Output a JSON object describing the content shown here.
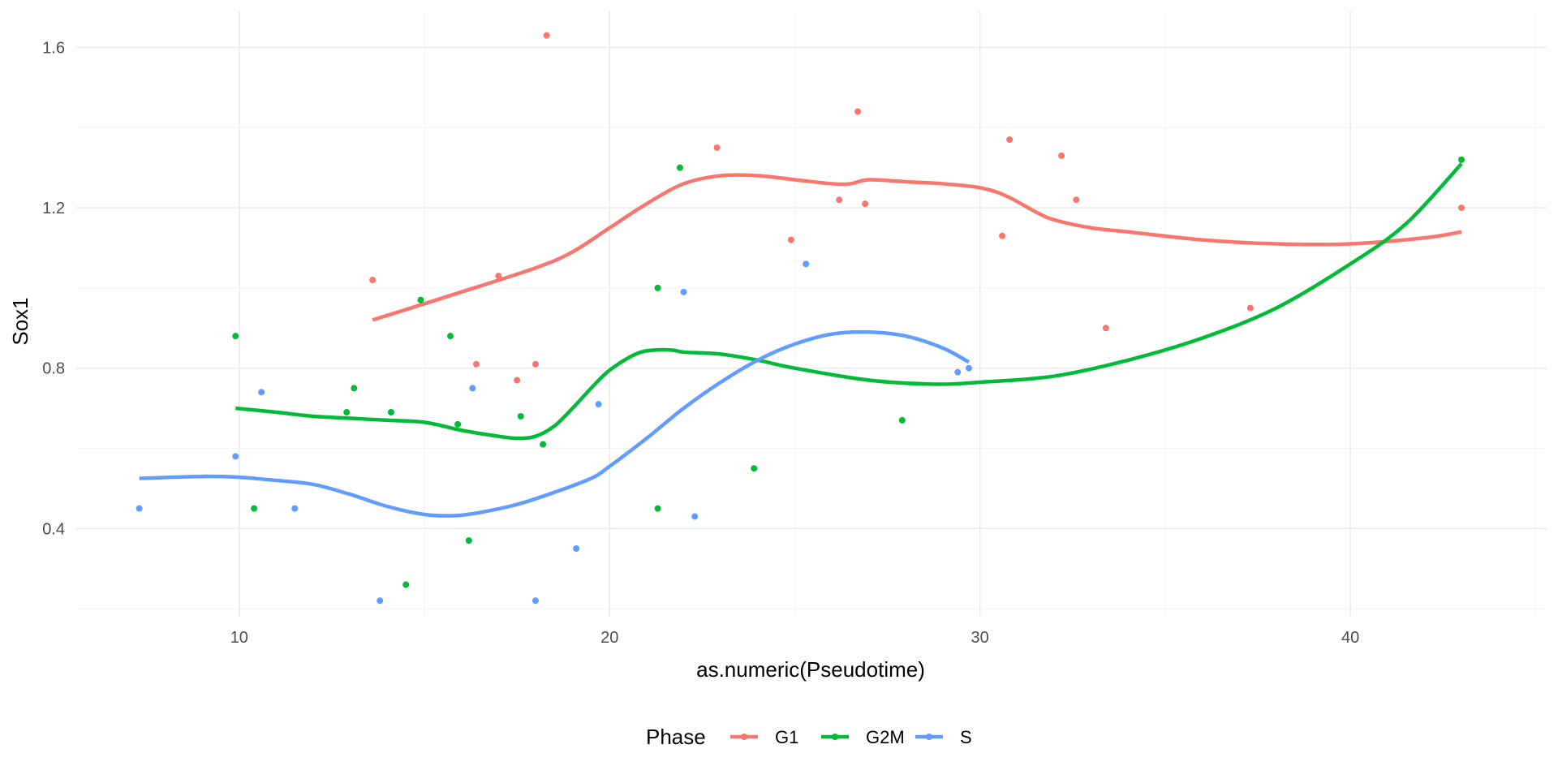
{
  "chart_data": {
    "type": "scatter",
    "title": "",
    "xlabel": "as.numeric(Pseudotime)",
    "ylabel": "Sox1",
    "xlim": [
      5.6,
      45.3
    ],
    "ylim": [
      0.18,
      1.69
    ],
    "x_ticks": [
      10,
      20,
      30,
      40
    ],
    "y_ticks": [
      0.4,
      0.8,
      1.2,
      1.6
    ],
    "grid": true,
    "legend": {
      "title": "Phase",
      "position": "bottom"
    },
    "series": [
      {
        "name": "G1",
        "color": "#F8766D",
        "points": [
          [
            13.6,
            1.02
          ],
          [
            18.3,
            1.63
          ],
          [
            17.0,
            1.03
          ],
          [
            16.4,
            0.81
          ],
          [
            17.5,
            0.77
          ],
          [
            18.0,
            0.81
          ],
          [
            22.9,
            1.35
          ],
          [
            24.9,
            1.12
          ],
          [
            26.2,
            1.22
          ],
          [
            26.7,
            1.44
          ],
          [
            26.9,
            1.21
          ],
          [
            30.6,
            1.13
          ],
          [
            30.8,
            1.37
          ],
          [
            32.2,
            1.33
          ],
          [
            32.6,
            1.22
          ],
          [
            33.4,
            0.9
          ],
          [
            37.3,
            0.95
          ],
          [
            43.0,
            1.2
          ]
        ],
        "smooth": [
          [
            13.6,
            0.92
          ],
          [
            16.0,
            0.99
          ],
          [
            18.0,
            1.05
          ],
          [
            19.0,
            1.09
          ],
          [
            20.0,
            1.15
          ],
          [
            21.0,
            1.21
          ],
          [
            22.0,
            1.26
          ],
          [
            23.0,
            1.28
          ],
          [
            24.0,
            1.28
          ],
          [
            25.0,
            1.27
          ],
          [
            26.0,
            1.26
          ],
          [
            26.5,
            1.26
          ],
          [
            27.0,
            1.27
          ],
          [
            28.0,
            1.265
          ],
          [
            29.0,
            1.26
          ],
          [
            30.0,
            1.25
          ],
          [
            30.7,
            1.23
          ],
          [
            31.5,
            1.19
          ],
          [
            32.0,
            1.17
          ],
          [
            33.0,
            1.15
          ],
          [
            34.0,
            1.14
          ],
          [
            36.0,
            1.12
          ],
          [
            38.0,
            1.11
          ],
          [
            40.0,
            1.11
          ],
          [
            42.0,
            1.125
          ],
          [
            43.0,
            1.14
          ]
        ]
      },
      {
        "name": "G2M",
        "color": "#00BA38",
        "points": [
          [
            9.9,
            0.88
          ],
          [
            10.4,
            0.45
          ],
          [
            12.9,
            0.69
          ],
          [
            13.1,
            0.75
          ],
          [
            14.1,
            0.69
          ],
          [
            14.5,
            0.26
          ],
          [
            14.9,
            0.97
          ],
          [
            15.7,
            0.88
          ],
          [
            15.9,
            0.66
          ],
          [
            16.2,
            0.37
          ],
          [
            17.6,
            0.68
          ],
          [
            18.2,
            0.61
          ],
          [
            21.3,
            1.0
          ],
          [
            21.3,
            0.45
          ],
          [
            21.9,
            1.3
          ],
          [
            23.9,
            0.55
          ],
          [
            27.9,
            0.67
          ],
          [
            43.0,
            1.32
          ]
        ],
        "smooth": [
          [
            9.9,
            0.7
          ],
          [
            11.0,
            0.69
          ],
          [
            12.0,
            0.68
          ],
          [
            13.0,
            0.675
          ],
          [
            14.0,
            0.67
          ],
          [
            15.0,
            0.665
          ],
          [
            16.0,
            0.645
          ],
          [
            17.0,
            0.63
          ],
          [
            17.5,
            0.625
          ],
          [
            18.0,
            0.63
          ],
          [
            18.5,
            0.655
          ],
          [
            19.0,
            0.7
          ],
          [
            19.5,
            0.75
          ],
          [
            20.0,
            0.795
          ],
          [
            20.7,
            0.835
          ],
          [
            21.2,
            0.845
          ],
          [
            21.7,
            0.845
          ],
          [
            22.0,
            0.84
          ],
          [
            23.0,
            0.835
          ],
          [
            24.0,
            0.82
          ],
          [
            25.0,
            0.8
          ],
          [
            27.0,
            0.77
          ],
          [
            28.8,
            0.76
          ],
          [
            30.0,
            0.765
          ],
          [
            32.0,
            0.78
          ],
          [
            34.0,
            0.82
          ],
          [
            36.0,
            0.875
          ],
          [
            38.0,
            0.95
          ],
          [
            40.0,
            1.06
          ],
          [
            41.5,
            1.16
          ],
          [
            43.0,
            1.31
          ]
        ]
      },
      {
        "name": "S",
        "color": "#619CFF",
        "points": [
          [
            7.3,
            0.45
          ],
          [
            9.9,
            0.58
          ],
          [
            10.6,
            0.74
          ],
          [
            11.5,
            0.45
          ],
          [
            13.8,
            0.22
          ],
          [
            16.3,
            0.75
          ],
          [
            18.0,
            0.22
          ],
          [
            19.1,
            0.35
          ],
          [
            19.7,
            0.71
          ],
          [
            22.0,
            0.99
          ],
          [
            22.3,
            0.43
          ],
          [
            25.3,
            1.06
          ],
          [
            29.4,
            0.79
          ],
          [
            29.7,
            0.8
          ]
        ],
        "smooth": [
          [
            7.3,
            0.525
          ],
          [
            9.0,
            0.53
          ],
          [
            10.0,
            0.528
          ],
          [
            11.0,
            0.52
          ],
          [
            12.0,
            0.51
          ],
          [
            13.0,
            0.485
          ],
          [
            14.0,
            0.455
          ],
          [
            15.0,
            0.435
          ],
          [
            15.8,
            0.432
          ],
          [
            16.5,
            0.44
          ],
          [
            17.5,
            0.46
          ],
          [
            18.5,
            0.49
          ],
          [
            19.5,
            0.525
          ],
          [
            20.0,
            0.555
          ],
          [
            21.0,
            0.625
          ],
          [
            22.0,
            0.7
          ],
          [
            23.0,
            0.765
          ],
          [
            24.0,
            0.82
          ],
          [
            25.0,
            0.86
          ],
          [
            26.0,
            0.885
          ],
          [
            27.0,
            0.89
          ],
          [
            28.0,
            0.88
          ],
          [
            29.0,
            0.85
          ],
          [
            29.7,
            0.815
          ]
        ]
      }
    ]
  }
}
